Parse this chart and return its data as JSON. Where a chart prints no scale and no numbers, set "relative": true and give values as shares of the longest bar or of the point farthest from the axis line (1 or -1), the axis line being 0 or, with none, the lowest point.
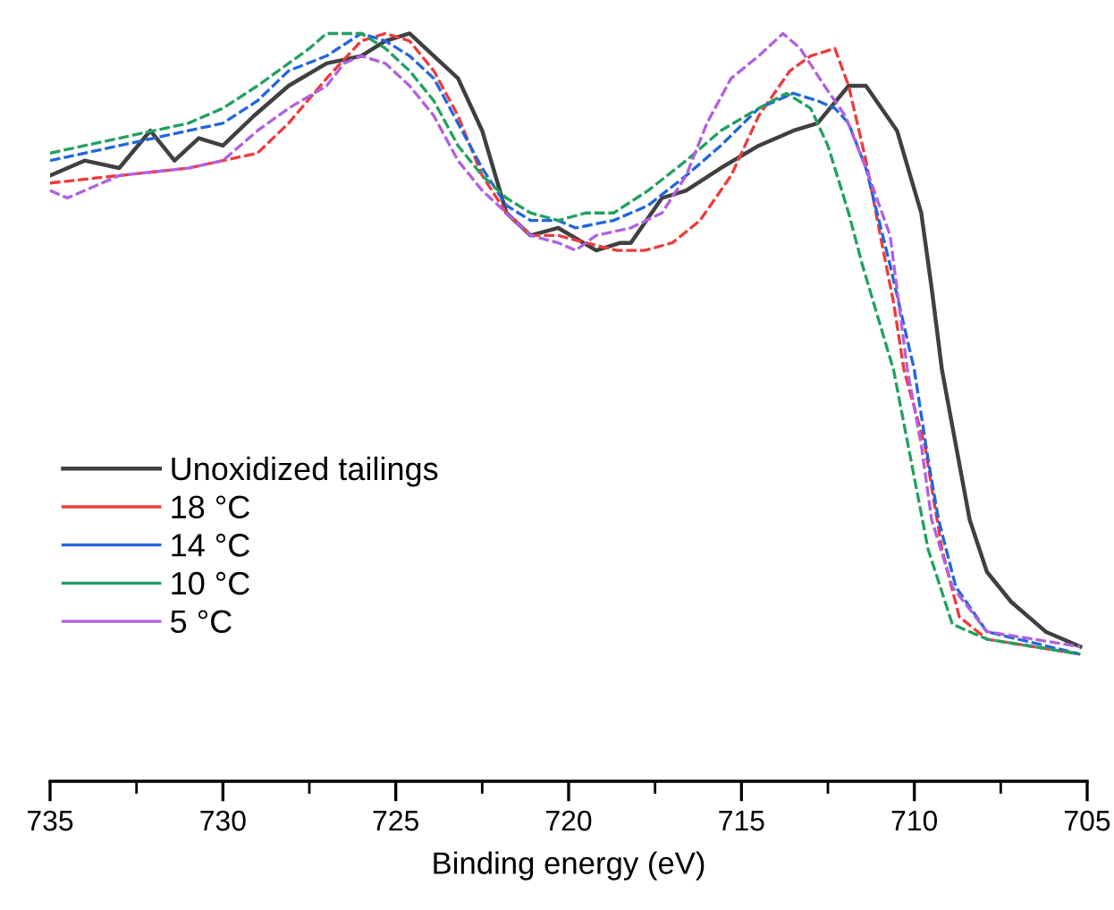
{
  "chart_data": {
    "type": "line",
    "relative": true,
    "xlabel": "Binding energy (eV)",
    "xlim": [
      735,
      705
    ],
    "xticks": [
      735,
      730,
      725,
      720,
      715,
      710,
      705
    ],
    "grid": false,
    "legend": "left",
    "marker": "none",
    "series": [
      {
        "name": "Unoxidized tailings",
        "color": "#404040",
        "line_style": "solid",
        "x": [
          735,
          734,
          733,
          732.1,
          731.4,
          730.7,
          730,
          729.1,
          728.1,
          727,
          726,
          725.3,
          724.6,
          723.9,
          723.2,
          722.5,
          721.8,
          721.1,
          720.3,
          719.2,
          718.5,
          718.2,
          717.3,
          716.6,
          715.6,
          714.5,
          713.5,
          712.8,
          711.9,
          711.4,
          710.5,
          709.8,
          709.5,
          709.2,
          708.8,
          708.4,
          707.9,
          707.2,
          706.2,
          705.2
        ],
        "values": [
          0.81,
          0.83,
          0.82,
          0.87,
          0.83,
          0.86,
          0.85,
          0.89,
          0.93,
          0.96,
          0.97,
          0.99,
          1.0,
          0.97,
          0.94,
          0.87,
          0.76,
          0.73,
          0.74,
          0.71,
          0.72,
          0.72,
          0.78,
          0.79,
          0.82,
          0.85,
          0.87,
          0.88,
          0.93,
          0.93,
          0.87,
          0.76,
          0.66,
          0.55,
          0.45,
          0.35,
          0.28,
          0.24,
          0.2,
          0.18
        ]
      },
      {
        "name": "18 °C",
        "color": "#ee3b3b",
        "line_style": "dashed",
        "x": [
          735,
          733,
          731,
          730,
          729,
          728.1,
          727,
          726,
          725.3,
          724.6,
          723.9,
          723.2,
          722.5,
          721.8,
          721.1,
          720.3,
          719.5,
          718.6,
          717.8,
          717,
          716.2,
          715.3,
          714.5,
          713.6,
          713,
          712.3,
          711.9,
          711.4,
          710.9,
          710.6,
          710.3,
          709.7,
          709.2,
          708.7,
          707.9,
          705.2
        ],
        "values": [
          0.8,
          0.81,
          0.82,
          0.83,
          0.84,
          0.88,
          0.94,
          0.99,
          1.0,
          0.99,
          0.95,
          0.89,
          0.81,
          0.76,
          0.73,
          0.73,
          0.72,
          0.71,
          0.71,
          0.72,
          0.75,
          0.81,
          0.89,
          0.95,
          0.97,
          0.98,
          0.93,
          0.83,
          0.71,
          0.64,
          0.55,
          0.45,
          0.31,
          0.22,
          0.19,
          0.17
        ]
      },
      {
        "name": "14 °C",
        "color": "#2266dd",
        "line_style": "dashed",
        "x": [
          735,
          733,
          731,
          730,
          729,
          728.1,
          727,
          726,
          725.3,
          724.6,
          723.9,
          723.2,
          722.5,
          721.8,
          721.1,
          720.3,
          719.8,
          718.7,
          717.7,
          716.6,
          715.6,
          714.5,
          714,
          713.5,
          712.8,
          712.3,
          711.9,
          711.4,
          710.7,
          710,
          709.6,
          709.3,
          708.8,
          707.9,
          705.2
        ],
        "values": [
          0.83,
          0.85,
          0.87,
          0.88,
          0.91,
          0.95,
          0.97,
          1.0,
          0.99,
          0.97,
          0.94,
          0.88,
          0.82,
          0.77,
          0.75,
          0.75,
          0.74,
          0.75,
          0.77,
          0.81,
          0.85,
          0.9,
          0.91,
          0.92,
          0.91,
          0.9,
          0.88,
          0.82,
          0.69,
          0.55,
          0.43,
          0.35,
          0.26,
          0.2,
          0.17
        ]
      },
      {
        "name": "10 °C",
        "color": "#22a060",
        "line_style": "dashed",
        "x": [
          735,
          733,
          731,
          730,
          729,
          728.1,
          727.5,
          727,
          726,
          725.3,
          724.6,
          723.9,
          723.2,
          722.5,
          721.8,
          721.1,
          720.3,
          719.5,
          718.7,
          717.7,
          716.6,
          715.6,
          714.5,
          713.7,
          713,
          712.5,
          711.9,
          711.5,
          710.6,
          710.1,
          709.6,
          708.9,
          707.9,
          705.2
        ],
        "values": [
          0.84,
          0.86,
          0.88,
          0.9,
          0.93,
          0.96,
          0.98,
          1.0,
          1.0,
          0.98,
          0.95,
          0.91,
          0.85,
          0.81,
          0.78,
          0.76,
          0.75,
          0.76,
          0.76,
          0.79,
          0.83,
          0.87,
          0.9,
          0.92,
          0.9,
          0.85,
          0.76,
          0.69,
          0.55,
          0.43,
          0.31,
          0.21,
          0.19,
          0.17
        ]
      },
      {
        "name": "5 °C",
        "color": "#b060e0",
        "line_style": "dashed",
        "x": [
          735,
          734.5,
          733,
          731,
          730,
          729,
          728.1,
          727,
          726.5,
          726,
          725.3,
          724.6,
          723.9,
          723.2,
          722.5,
          721.8,
          721.1,
          720.3,
          719.8,
          719.2,
          718.2,
          717.3,
          716.6,
          716,
          715.3,
          714.5,
          713.8,
          713.3,
          712.6,
          712,
          711.4,
          710.7,
          710.2,
          709.8,
          709.5,
          708.9,
          707.9,
          705.2
        ],
        "values": [
          0.79,
          0.78,
          0.81,
          0.82,
          0.83,
          0.87,
          0.9,
          0.93,
          0.96,
          0.97,
          0.96,
          0.93,
          0.89,
          0.83,
          0.79,
          0.76,
          0.73,
          0.72,
          0.71,
          0.73,
          0.74,
          0.76,
          0.81,
          0.88,
          0.94,
          0.97,
          1.0,
          0.98,
          0.93,
          0.89,
          0.82,
          0.73,
          0.55,
          0.45,
          0.35,
          0.26,
          0.2,
          0.18
        ]
      }
    ]
  }
}
